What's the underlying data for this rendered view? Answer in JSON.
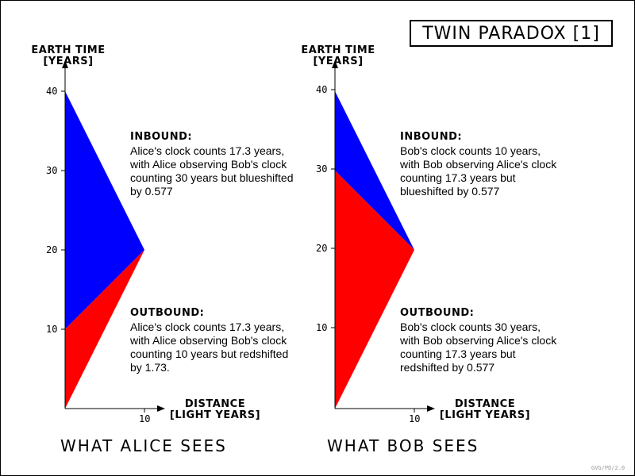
{
  "title": "TWIN PARADOX [1]",
  "credit": "GVG/PD/2.0",
  "colors": {
    "inbound": "#0000ff",
    "outbound": "#ff0000",
    "axis": "#000000"
  },
  "panels": [
    {
      "caption": "WHAT ALICE SEES",
      "y_label_line1": "EARTH TIME",
      "y_label_line2": "[YEARS]",
      "x_label_line1": "DISTANCE",
      "x_label_line2": "[LIGHT YEARS]",
      "y_ticks": [
        "10",
        "20",
        "30",
        "40"
      ],
      "x_ticks": [
        "10"
      ],
      "inbound_title": "INBOUND:",
      "inbound_text": "Alice's clock counts 17.3 years, with Alice observing Bob's clock counting 30 years but blueshifted by 0.577",
      "outbound_title": "OUTBOUND:",
      "outbound_text": "Alice's clock counts 17.3 years, with Alice observing Bob's clock counting 10 years but redshifted by 1.73."
    },
    {
      "caption": "WHAT BOB SEES",
      "y_label_line1": "EARTH TIME",
      "y_label_line2": "[YEARS]",
      "x_label_line1": "DISTANCE",
      "x_label_line2": "[LIGHT YEARS]",
      "y_ticks": [
        "10",
        "20",
        "30",
        "40"
      ],
      "x_ticks": [
        "10"
      ],
      "inbound_title": "INBOUND:",
      "inbound_text": "Bob's clock counts 10 years, with Bob observing Alice's clock counting 17.3 years but blueshifted by 0.577",
      "outbound_title": "OUTBOUND:",
      "outbound_text": "Bob's clock counts 30 years, with Bob observing Alice's clock counting 17.3 years but redshifted by 0.577"
    }
  ]
}
